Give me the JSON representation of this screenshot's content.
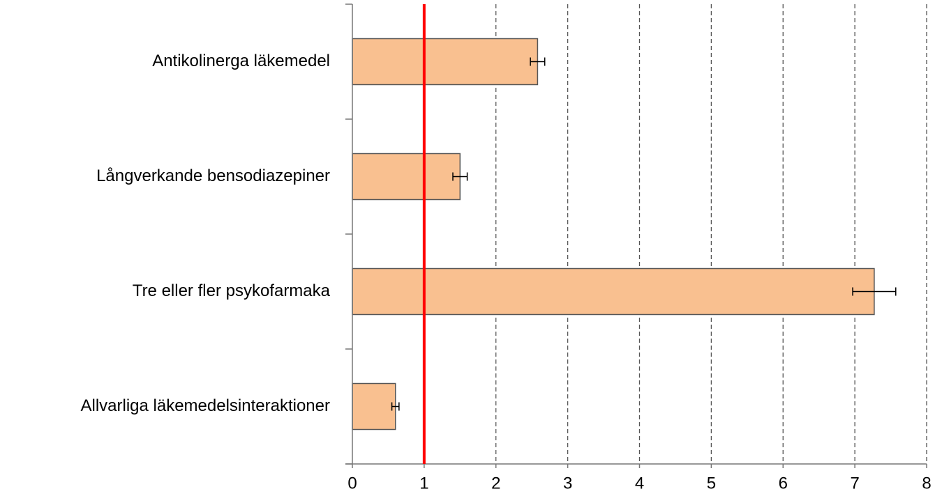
{
  "chart_data": {
    "type": "bar",
    "orientation": "horizontal",
    "categories": [
      "Antikolinerga läkemedel",
      "Långverkande bensodiazepiner",
      "Tre eller fler psykofarmaka",
      "Allvarliga läkemedelsinteraktioner"
    ],
    "values": [
      2.58,
      1.5,
      7.27,
      0.6
    ],
    "errors": [
      0.1,
      0.1,
      0.3,
      0.05
    ],
    "color": "#f9c090",
    "xlim": [
      0,
      8
    ],
    "xticks": [
      0,
      1,
      2,
      3,
      4,
      5,
      6,
      7,
      8
    ],
    "grid": true,
    "reference_line": {
      "value": 1,
      "color": "#ff0000"
    }
  }
}
